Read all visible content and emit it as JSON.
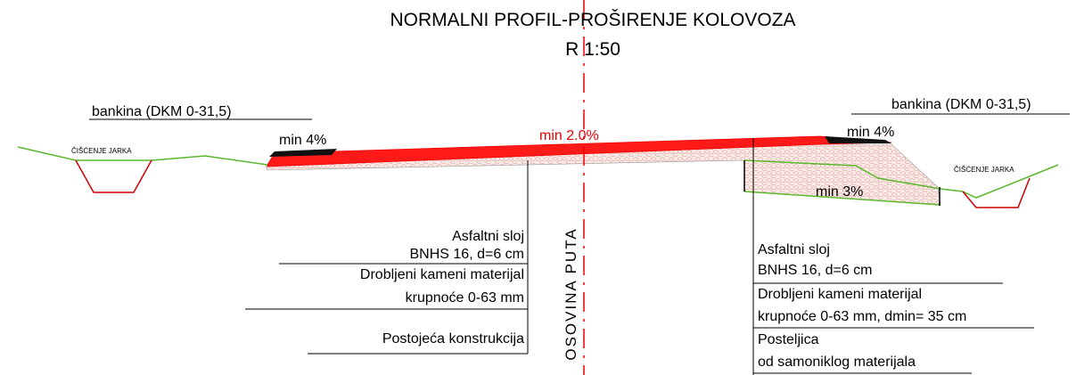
{
  "title": "NORMALNI PROFIL-PROŠIRENJE KOLOVOZA",
  "scale": "R 1:50",
  "axis_label": "OSOVINA PUTA",
  "center_slope": "min 2.0%",
  "left": {
    "shoulder": "bankina (DKM 0-31,5)",
    "ditch": "ČIŠĆENJE JARKA",
    "slope": "min 4%",
    "layers": [
      "Asfaltni sloj",
      "BNHS 16, d=6 cm",
      "Drobljeni kameni materijal",
      "krupnoće 0-63 mm",
      "Postojeća konstrukcija"
    ]
  },
  "right": {
    "shoulder": "bankina (DKM 0-31,5)",
    "ditch": "ČIŠĆENJE JARKA",
    "slope": "min 4%",
    "subgrade_slope": "min 3%",
    "layers": [
      "Asfaltni sloj",
      "BNHS 16, d=6 cm",
      "Drobljeni kameni materijal",
      "krupnoće 0-63 mm, dmin= 35 cm",
      "Posteljica",
      "od samoniklog materijala"
    ]
  }
}
